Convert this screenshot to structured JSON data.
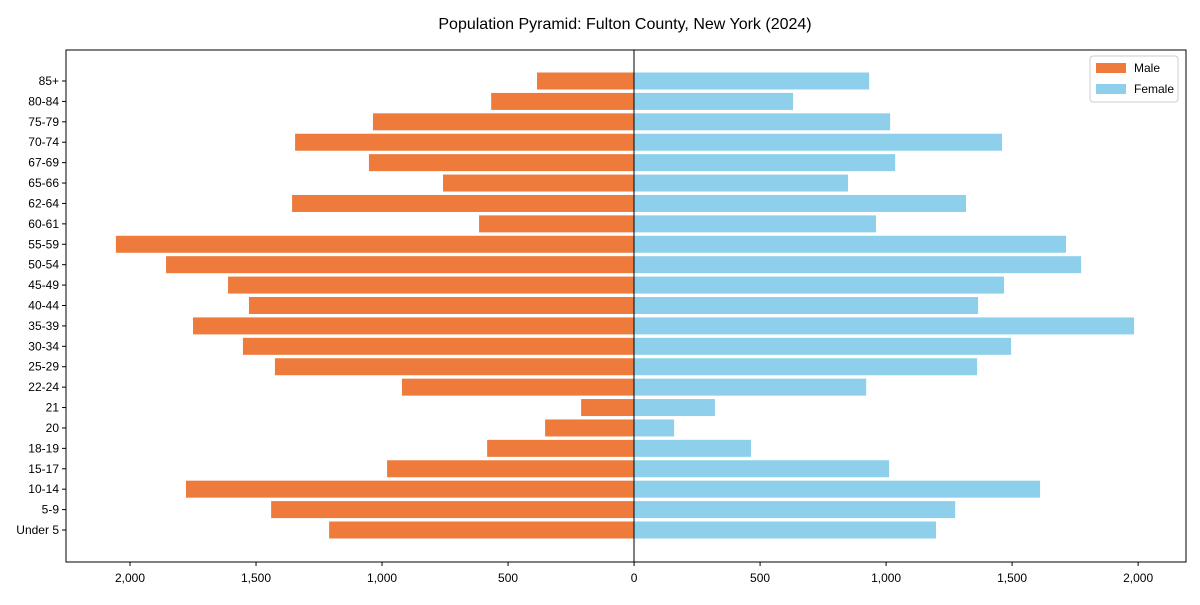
{
  "chart_data": {
    "type": "bar",
    "orientation": "horizontal",
    "title": "Population Pyramid: Fulton County, New York (2024)",
    "xlabel": "",
    "ylabel": "",
    "xlim": [
      -2254,
      2190
    ],
    "xticks": [
      -2000,
      -1500,
      -1000,
      -500,
      0,
      500,
      1000,
      1500,
      2000
    ],
    "xtick_labels": [
      "2,000",
      "1,500",
      "1,000",
      "500",
      "0",
      "500",
      "1,000",
      "1,500",
      "2,000"
    ],
    "grid": false,
    "legend_position": "top-right",
    "categories": [
      "Under 5",
      "5-9",
      "10-14",
      "15-17",
      "18-19",
      "20",
      "21",
      "22-24",
      "25-29",
      "30-34",
      "35-39",
      "40-44",
      "45-49",
      "50-54",
      "55-59",
      "60-61",
      "62-64",
      "65-66",
      "67-69",
      "70-74",
      "75-79",
      "80-84",
      "85+"
    ],
    "series": [
      {
        "name": "Male",
        "color": "#ee7b3b",
        "values": [
          1210,
          1440,
          1778,
          980,
          583,
          353,
          210,
          921,
          1425,
          1552,
          1750,
          1528,
          1611,
          1857,
          2056,
          615,
          1357,
          758,
          1052,
          1345,
          1036,
          567,
          385
        ]
      },
      {
        "name": "Female",
        "color": "#8ecfeb",
        "values": [
          1198,
          1274,
          1611,
          1012,
          464,
          159,
          321,
          921,
          1361,
          1496,
          1984,
          1365,
          1468,
          1774,
          1714,
          960,
          1317,
          849,
          1036,
          1460,
          1016,
          631,
          933
        ]
      }
    ]
  }
}
